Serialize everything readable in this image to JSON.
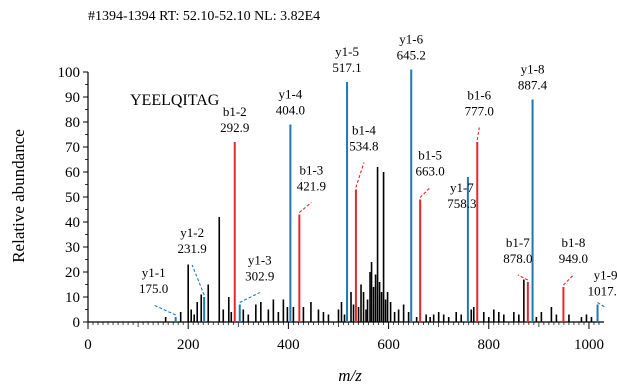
{
  "chart_data": {
    "type": "bar",
    "header": "#1394-1394 RT: 52.10-52.10 NL: 3.82E4",
    "peptide": "YEELQITAG",
    "xlabel": "m/z",
    "ylabel": "Relative abundance",
    "xlim": [
      0,
      1030
    ],
    "ylim": [
      0,
      100
    ],
    "xticks": [
      0,
      200,
      400,
      600,
      800,
      1000
    ],
    "yticks": [
      0,
      10,
      20,
      30,
      40,
      50,
      60,
      70,
      80,
      90,
      100
    ],
    "colors": {
      "y_ion": "#1f77b4",
      "b_ion": "#e8262b",
      "other": "#000000"
    },
    "annotated_peaks": [
      {
        "ion": "y1-1",
        "mz": "175.0",
        "x": 175.0,
        "y": 2,
        "series": "y"
      },
      {
        "ion": "y1-2",
        "mz": "231.9",
        "x": 231.9,
        "y": 10,
        "series": "y"
      },
      {
        "ion": "b1-2",
        "mz": "292.9",
        "x": 292.9,
        "y": 72,
        "series": "b"
      },
      {
        "ion": "y1-3",
        "mz": "302.9",
        "x": 302.9,
        "y": 7,
        "series": "y"
      },
      {
        "ion": "y1-4",
        "mz": "404.0",
        "x": 404.0,
        "y": 79,
        "series": "y"
      },
      {
        "ion": "b1-3",
        "mz": "421.9",
        "x": 421.9,
        "y": 43,
        "series": "b"
      },
      {
        "ion": "y1-5",
        "mz": "517.1",
        "x": 517.1,
        "y": 96,
        "series": "y"
      },
      {
        "ion": "b1-4",
        "mz": "534.8",
        "x": 534.8,
        "y": 53,
        "series": "b"
      },
      {
        "ion": "y1-6",
        "mz": "645.2",
        "x": 645.2,
        "y": 101,
        "series": "y"
      },
      {
        "ion": "b1-5",
        "mz": "663.0",
        "x": 663.0,
        "y": 49,
        "series": "b"
      },
      {
        "ion": "y1-7",
        "mz": "758.3",
        "x": 758.3,
        "y": 58,
        "series": "y"
      },
      {
        "ion": "b1-6",
        "mz": "777.0",
        "x": 777.0,
        "y": 72,
        "series": "b"
      },
      {
        "ion": "b1-7",
        "mz": "878.0",
        "x": 878.0,
        "y": 16,
        "series": "b"
      },
      {
        "ion": "y1-8",
        "mz": "887.4",
        "x": 887.4,
        "y": 89,
        "series": "y"
      },
      {
        "ion": "b1-8",
        "mz": "949.0",
        "x": 949.0,
        "y": 14,
        "series": "b"
      },
      {
        "ion": "y1-9",
        "mz": "1017.1",
        "x": 1017.1,
        "y": 7,
        "series": "y"
      }
    ],
    "other_peaks": [
      [
        155,
        2
      ],
      [
        185,
        4
      ],
      [
        200,
        23
      ],
      [
        206,
        5
      ],
      [
        212,
        3
      ],
      [
        218,
        8
      ],
      [
        226,
        11
      ],
      [
        240,
        15
      ],
      [
        262,
        42
      ],
      [
        270,
        5
      ],
      [
        281,
        10
      ],
      [
        286,
        4
      ],
      [
        310,
        5
      ],
      [
        320,
        3
      ],
      [
        335,
        7
      ],
      [
        345,
        8
      ],
      [
        360,
        5
      ],
      [
        370,
        9
      ],
      [
        380,
        4
      ],
      [
        390,
        9
      ],
      [
        398,
        6
      ],
      [
        410,
        6
      ],
      [
        430,
        6
      ],
      [
        445,
        8
      ],
      [
        460,
        5
      ],
      [
        470,
        4
      ],
      [
        480,
        3
      ],
      [
        500,
        5
      ],
      [
        506,
        8
      ],
      [
        512,
        3
      ],
      [
        525,
        12
      ],
      [
        530,
        7
      ],
      [
        540,
        6
      ],
      [
        545,
        15
      ],
      [
        550,
        12
      ],
      [
        555,
        5
      ],
      [
        558,
        9
      ],
      [
        563,
        20
      ],
      [
        566,
        24
      ],
      [
        570,
        14
      ],
      [
        574,
        19
      ],
      [
        578,
        62
      ],
      [
        582,
        16
      ],
      [
        586,
        12
      ],
      [
        590,
        60
      ],
      [
        594,
        9
      ],
      [
        598,
        12
      ],
      [
        604,
        8
      ],
      [
        612,
        4
      ],
      [
        620,
        5
      ],
      [
        630,
        7
      ],
      [
        640,
        4
      ],
      [
        656,
        2
      ],
      [
        675,
        3
      ],
      [
        683,
        2
      ],
      [
        690,
        3
      ],
      [
        700,
        4
      ],
      [
        710,
        3
      ],
      [
        720,
        2
      ],
      [
        735,
        4
      ],
      [
        745,
        3
      ],
      [
        765,
        5
      ],
      [
        770,
        6
      ],
      [
        790,
        4
      ],
      [
        800,
        2
      ],
      [
        810,
        5
      ],
      [
        820,
        4
      ],
      [
        830,
        3
      ],
      [
        850,
        4
      ],
      [
        860,
        3
      ],
      [
        870,
        17
      ],
      [
        895,
        2
      ],
      [
        905,
        4
      ],
      [
        925,
        6
      ],
      [
        935,
        3
      ],
      [
        960,
        3
      ],
      [
        985,
        2
      ],
      [
        995,
        3
      ],
      [
        1005,
        2
      ]
    ]
  }
}
